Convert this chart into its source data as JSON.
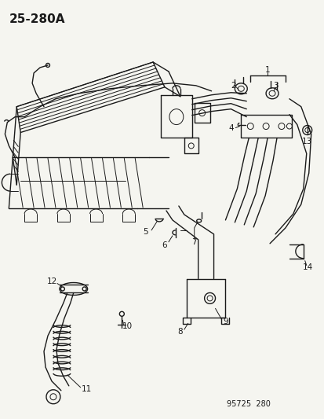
{
  "title": "25-280A",
  "catalog_num": "95725  280",
  "bg_color": "#f5f5f0",
  "line_color": "#1a1a1a",
  "title_fontsize": 11,
  "label_fontsize": 7.5,
  "lw_main": 1.0,
  "lw_thin": 0.7
}
